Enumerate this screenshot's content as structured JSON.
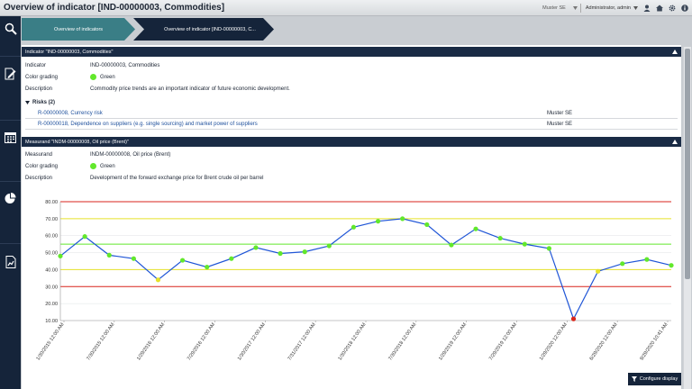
{
  "header": {
    "title": "Overview of indicator [IND-00000003, Commodities]",
    "company_select": "Muster SE",
    "user": "Administrator, admin"
  },
  "breadcrumb": [
    "Overview of indicators",
    "Overview of indicator [IND-00000003, C..."
  ],
  "indicator_section": {
    "title": "Indicator \"IND-00000003, Commodities\"",
    "fields": [
      {
        "label": "Indicator",
        "value": "IND-00000003, Commodities"
      },
      {
        "label": "Color grading",
        "value": "Green"
      },
      {
        "label": "Description",
        "value": "Commodity price trends are an important indicator of future economic development."
      }
    ],
    "risks_title": "Risks (2)",
    "risks": [
      {
        "name": "R-00000008, Currency risk",
        "org": "Muster SE"
      },
      {
        "name": "R-00000018, Dependence on suppliers (e.g. single sourcing) and market power of suppliers",
        "org": "Muster SE"
      }
    ]
  },
  "measurand_section": {
    "title": "Measurand \"INDM-00000008, Oil price (Brent)\"",
    "fields": [
      {
        "label": "Measurand",
        "value": "INDM-00000008, Oil price (Brent)"
      },
      {
        "label": "Color grading",
        "value": "Green"
      },
      {
        "label": "Description",
        "value": "Development of the forward exchange price for Brent crude oil per barrel"
      }
    ]
  },
  "configure_label": "Configure display",
  "colors": {
    "accent": "#3a7e86",
    "navy": "#15243a",
    "green": "#62e82b",
    "red": "#d9261c",
    "yellow": "#e6e22a",
    "line": "#1f55d6"
  },
  "icons": [
    "search-icon",
    "edit-document-icon",
    "calendar-icon",
    "pie-chart-icon",
    "report-icon",
    "user-icon",
    "home-icon",
    "gear-icon",
    "info-icon"
  ],
  "chart_data": {
    "type": "line",
    "ylim": [
      10,
      80
    ],
    "yticks": [
      "10.00",
      "20.00",
      "30.00",
      "40.00",
      "50.00",
      "60.00",
      "70.00",
      "80.00"
    ],
    "thresholds": [
      {
        "value": 80,
        "color": "red"
      },
      {
        "value": 70,
        "color": "yellow"
      },
      {
        "value": 55,
        "color": "green"
      },
      {
        "value": 40,
        "color": "yellow"
      },
      {
        "value": 30,
        "color": "red"
      }
    ],
    "xlabels": [
      "1/30/2015 12:00 AM",
      "7/30/2015 12:00 AM",
      "1/29/2016 12:00 AM",
      "7/29/2016 12:00 AM",
      "1/30/2017 12:00 AM",
      "7/31/2017 12:00 AM",
      "1/30/2018 12:00 AM",
      "7/30/2018 12:00 AM",
      "1/29/2019 12:00 AM",
      "7/29/2019 12:00 AM",
      "1/29/2020 12:00 AM",
      "6/29/2020 12:00 AM",
      "9/29/2020 10:41 AM"
    ],
    "series": [
      {
        "values": [
          48,
          59.5,
          48.5,
          46.5,
          34,
          45.5,
          41.5,
          46.5,
          53,
          49.5,
          50.5,
          54,
          65,
          68.5,
          70,
          66.5,
          54.5,
          64,
          58.5,
          55,
          52.5,
          11,
          39,
          43.5,
          46,
          42.5
        ],
        "marker_colors": [
          "green",
          "green",
          "green",
          "green",
          "yellow",
          "green",
          "green",
          "green",
          "green",
          "green",
          "green",
          "green",
          "green",
          "green",
          "green",
          "green",
          "green",
          "green",
          "green",
          "green",
          "green",
          "red",
          "yellow",
          "green",
          "green",
          "green"
        ]
      }
    ]
  }
}
